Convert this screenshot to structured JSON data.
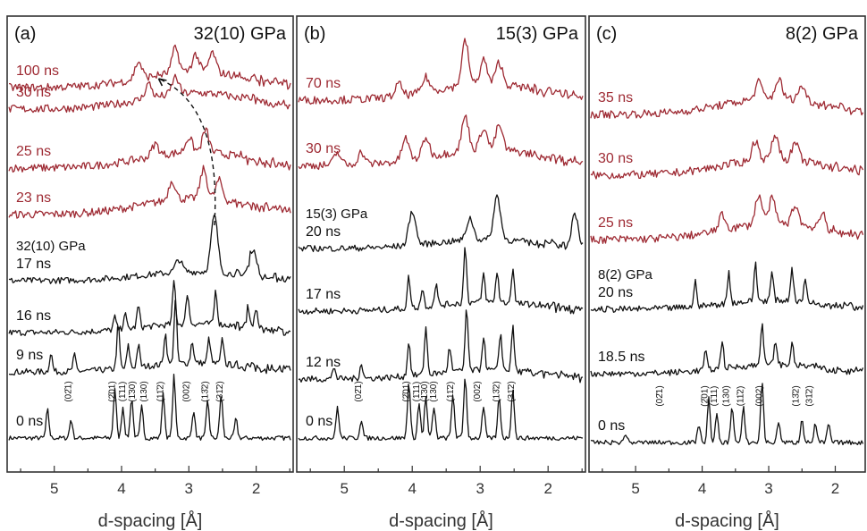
{
  "colors": {
    "shocked_red": "#9e2a33",
    "black": "#111111"
  },
  "chart_data": [
    {
      "type": "line",
      "panel": "(a)",
      "pressure": "32(10) GPa",
      "xlabel": "d-spacing [Å]",
      "xlim": [
        5.7,
        1.45
      ],
      "x_ticks": [
        5,
        4,
        3,
        2
      ],
      "x_tick_labels": [
        "5",
        "4",
        "3",
        "2"
      ],
      "series": [
        {
          "name": "0 ns",
          "color": "black",
          "peaks": [
            [
              5.1,
              0.45
            ],
            [
              4.75,
              0.3
            ],
            [
              4.1,
              0.8
            ],
            [
              3.98,
              0.5
            ],
            [
              3.85,
              0.65
            ],
            [
              3.7,
              0.5
            ],
            [
              3.38,
              0.7
            ],
            [
              3.22,
              1.0
            ],
            [
              2.93,
              0.45
            ],
            [
              2.72,
              0.6
            ],
            [
              2.52,
              0.7
            ],
            [
              2.3,
              0.3
            ]
          ]
        },
        {
          "name": "9 ns",
          "color": "black",
          "peaks": [
            [
              5.05,
              0.3
            ],
            [
              4.7,
              0.25
            ],
            [
              4.05,
              0.7
            ],
            [
              3.9,
              0.35
            ],
            [
              3.75,
              0.35
            ],
            [
              3.35,
              0.5
            ],
            [
              3.2,
              1.0
            ],
            [
              2.95,
              0.35
            ],
            [
              2.7,
              0.4
            ],
            [
              2.5,
              0.4
            ]
          ]
        },
        {
          "name": "16 ns",
          "color": "black",
          "peaks": [
            [
              4.1,
              0.2
            ],
            [
              3.95,
              0.25
            ],
            [
              3.75,
              0.35
            ],
            [
              3.22,
              0.7
            ],
            [
              3.02,
              0.5
            ],
            [
              2.6,
              0.55
            ],
            [
              2.12,
              0.35
            ],
            [
              2.0,
              0.3
            ]
          ]
        },
        {
          "name": "17 ns",
          "label_pressure": "32(10) GPa",
          "color": "black",
          "peaks": [
            [
              3.15,
              0.2
            ],
            [
              2.62,
              0.9
            ],
            [
              2.05,
              0.45
            ]
          ]
        },
        {
          "name": "23 ns",
          "color": "red",
          "peaks": [
            [
              3.25,
              0.4
            ],
            [
              2.78,
              0.6
            ],
            [
              2.55,
              0.4
            ]
          ]
        },
        {
          "name": "25 ns",
          "color": "red",
          "peaks": [
            [
              3.5,
              0.25
            ],
            [
              3.0,
              0.3
            ],
            [
              2.75,
              0.45
            ]
          ]
        },
        {
          "name": "30 ns",
          "color": "red",
          "peaks": [
            [
              3.6,
              0.3
            ],
            [
              3.2,
              0.35
            ]
          ]
        },
        {
          "name": "100 ns",
          "color": "red",
          "peaks": [
            [
              3.75,
              0.35
            ],
            [
              3.2,
              0.5
            ],
            [
              2.9,
              0.35
            ],
            [
              2.65,
              0.4
            ]
          ]
        }
      ],
      "peak_labels": [
        {
          "d": 4.75,
          "hkl": "(02̄1)"
        },
        {
          "d": 4.1,
          "hkl": "(2̄01)"
        },
        {
          "d": 3.95,
          "hkl": "(1̄11)"
        },
        {
          "d": 3.8,
          "hkl": "(1̄30)"
        },
        {
          "d": 3.63,
          "hkl": "(130)"
        },
        {
          "d": 3.38,
          "hkl": "(11̄2)"
        },
        {
          "d": 3.0,
          "hkl": "(002)"
        },
        {
          "d": 2.72,
          "hkl": "(13̄2)"
        },
        {
          "d": 2.5,
          "hkl": "(31̄2)"
        }
      ]
    },
    {
      "type": "line",
      "panel": "(b)",
      "pressure": "15(3) GPa",
      "xlabel": "d-spacing [Å]",
      "xlim": [
        5.7,
        1.45
      ],
      "x_ticks": [
        5,
        4,
        3,
        2
      ],
      "x_tick_labels": [
        "5",
        "4",
        "3",
        "2"
      ],
      "series": [
        {
          "name": "0 ns",
          "color": "black",
          "peaks": [
            [
              5.1,
              0.5
            ],
            [
              4.75,
              0.3
            ],
            [
              4.05,
              0.9
            ],
            [
              3.9,
              0.55
            ],
            [
              3.8,
              0.65
            ],
            [
              3.68,
              0.5
            ],
            [
              3.4,
              0.7
            ],
            [
              3.22,
              1.0
            ],
            [
              2.95,
              0.5
            ],
            [
              2.72,
              0.65
            ],
            [
              2.52,
              0.8
            ]
          ]
        },
        {
          "name": "12 ns",
          "color": "black",
          "peaks": [
            [
              5.15,
              0.2
            ],
            [
              4.75,
              0.25
            ],
            [
              4.05,
              0.55
            ],
            [
              3.8,
              0.75
            ],
            [
              3.45,
              0.4
            ],
            [
              3.2,
              1.0
            ],
            [
              2.95,
              0.55
            ],
            [
              2.7,
              0.6
            ],
            [
              2.52,
              0.7
            ]
          ]
        },
        {
          "name": "17 ns",
          "color": "black",
          "peaks": [
            [
              4.05,
              0.5
            ],
            [
              3.85,
              0.3
            ],
            [
              3.65,
              0.35
            ],
            [
              3.22,
              0.9
            ],
            [
              2.95,
              0.45
            ],
            [
              2.75,
              0.5
            ],
            [
              2.52,
              0.55
            ]
          ]
        },
        {
          "name": "20 ns",
          "label_pressure": "15(3) GPa",
          "color": "black",
          "peaks": [
            [
              4.0,
              0.55
            ],
            [
              3.15,
              0.35
            ],
            [
              2.75,
              0.7
            ],
            [
              1.6,
              0.5
            ]
          ]
        },
        {
          "name": "30 ns",
          "color": "red",
          "peaks": [
            [
              5.1,
              0.25
            ],
            [
              4.75,
              0.25
            ],
            [
              4.1,
              0.45
            ],
            [
              3.8,
              0.4
            ],
            [
              3.22,
              0.7
            ],
            [
              2.95,
              0.45
            ],
            [
              2.72,
              0.5
            ]
          ]
        },
        {
          "name": "70 ns",
          "color": "red",
          "peaks": [
            [
              4.2,
              0.25
            ],
            [
              3.8,
              0.3
            ],
            [
              3.22,
              0.9
            ],
            [
              2.95,
              0.5
            ],
            [
              2.72,
              0.45
            ]
          ]
        }
      ],
      "peak_labels": [
        {
          "d": 4.75,
          "hkl": "(02̄1)"
        },
        {
          "d": 4.05,
          "hkl": "(2̄01)"
        },
        {
          "d": 3.9,
          "hkl": "(1̄11)"
        },
        {
          "d": 3.78,
          "hkl": "(1̄30)"
        },
        {
          "d": 3.65,
          "hkl": "(130)"
        },
        {
          "d": 3.4,
          "hkl": "(11̄2)"
        },
        {
          "d": 3.0,
          "hkl": "(002)"
        },
        {
          "d": 2.72,
          "hkl": "(13̄2)"
        },
        {
          "d": 2.5,
          "hkl": "(31̄2)"
        }
      ]
    },
    {
      "type": "line",
      "panel": "(c)",
      "pressure": "8(2) GPa",
      "xlabel": "d-spacing [Å]",
      "xlim": [
        5.7,
        1.55
      ],
      "x_ticks": [
        5,
        4,
        3,
        2
      ],
      "x_tick_labels": [
        "5",
        "4",
        "3",
        "2"
      ],
      "series": [
        {
          "name": "0 ns",
          "color": "black",
          "peaks": [
            [
              5.15,
              0.15
            ],
            [
              4.05,
              0.3
            ],
            [
              3.9,
              0.7
            ],
            [
              3.78,
              0.45
            ],
            [
              3.55,
              0.6
            ],
            [
              3.38,
              0.55
            ],
            [
              3.1,
              1.0
            ],
            [
              2.85,
              0.35
            ],
            [
              2.5,
              0.4
            ],
            [
              2.3,
              0.3
            ],
            [
              2.1,
              0.3
            ]
          ]
        },
        {
          "name": "18.5 ns",
          "color": "black",
          "peaks": [
            [
              3.95,
              0.3
            ],
            [
              3.7,
              0.45
            ],
            [
              3.1,
              0.7
            ],
            [
              2.9,
              0.4
            ],
            [
              2.65,
              0.35
            ]
          ]
        },
        {
          "name": "20 ns",
          "label_pressure": "8(2) GPa",
          "color": "black",
          "peaks": [
            [
              4.1,
              0.4
            ],
            [
              3.6,
              0.5
            ],
            [
              3.2,
              0.6
            ],
            [
              2.95,
              0.45
            ],
            [
              2.65,
              0.55
            ],
            [
              2.45,
              0.35
            ]
          ]
        },
        {
          "name": "25 ns",
          "color": "red",
          "peaks": [
            [
              3.7,
              0.3
            ],
            [
              3.15,
              0.6
            ],
            [
              2.95,
              0.5
            ],
            [
              2.6,
              0.4
            ],
            [
              2.2,
              0.3
            ]
          ]
        },
        {
          "name": "30 ns",
          "color": "red",
          "peaks": [
            [
              3.2,
              0.4
            ],
            [
              2.9,
              0.5
            ],
            [
              2.6,
              0.35
            ]
          ]
        },
        {
          "name": "35 ns",
          "color": "red",
          "peaks": [
            [
              3.15,
              0.35
            ],
            [
              2.85,
              0.4
            ],
            [
              2.5,
              0.3
            ]
          ]
        }
      ],
      "peak_labels": [
        {
          "d": 4.6,
          "hkl": "(02̄1)"
        },
        {
          "d": 3.92,
          "hkl": "(2̄01)"
        },
        {
          "d": 3.78,
          "hkl": "(1̄11)"
        },
        {
          "d": 3.6,
          "hkl": "(130)"
        },
        {
          "d": 3.38,
          "hkl": "(11̄2)"
        },
        {
          "d": 3.1,
          "hkl": "(002)"
        },
        {
          "d": 2.55,
          "hkl": "(13̄2)"
        },
        {
          "d": 2.35,
          "hkl": "(31̄2)"
        }
      ]
    }
  ]
}
